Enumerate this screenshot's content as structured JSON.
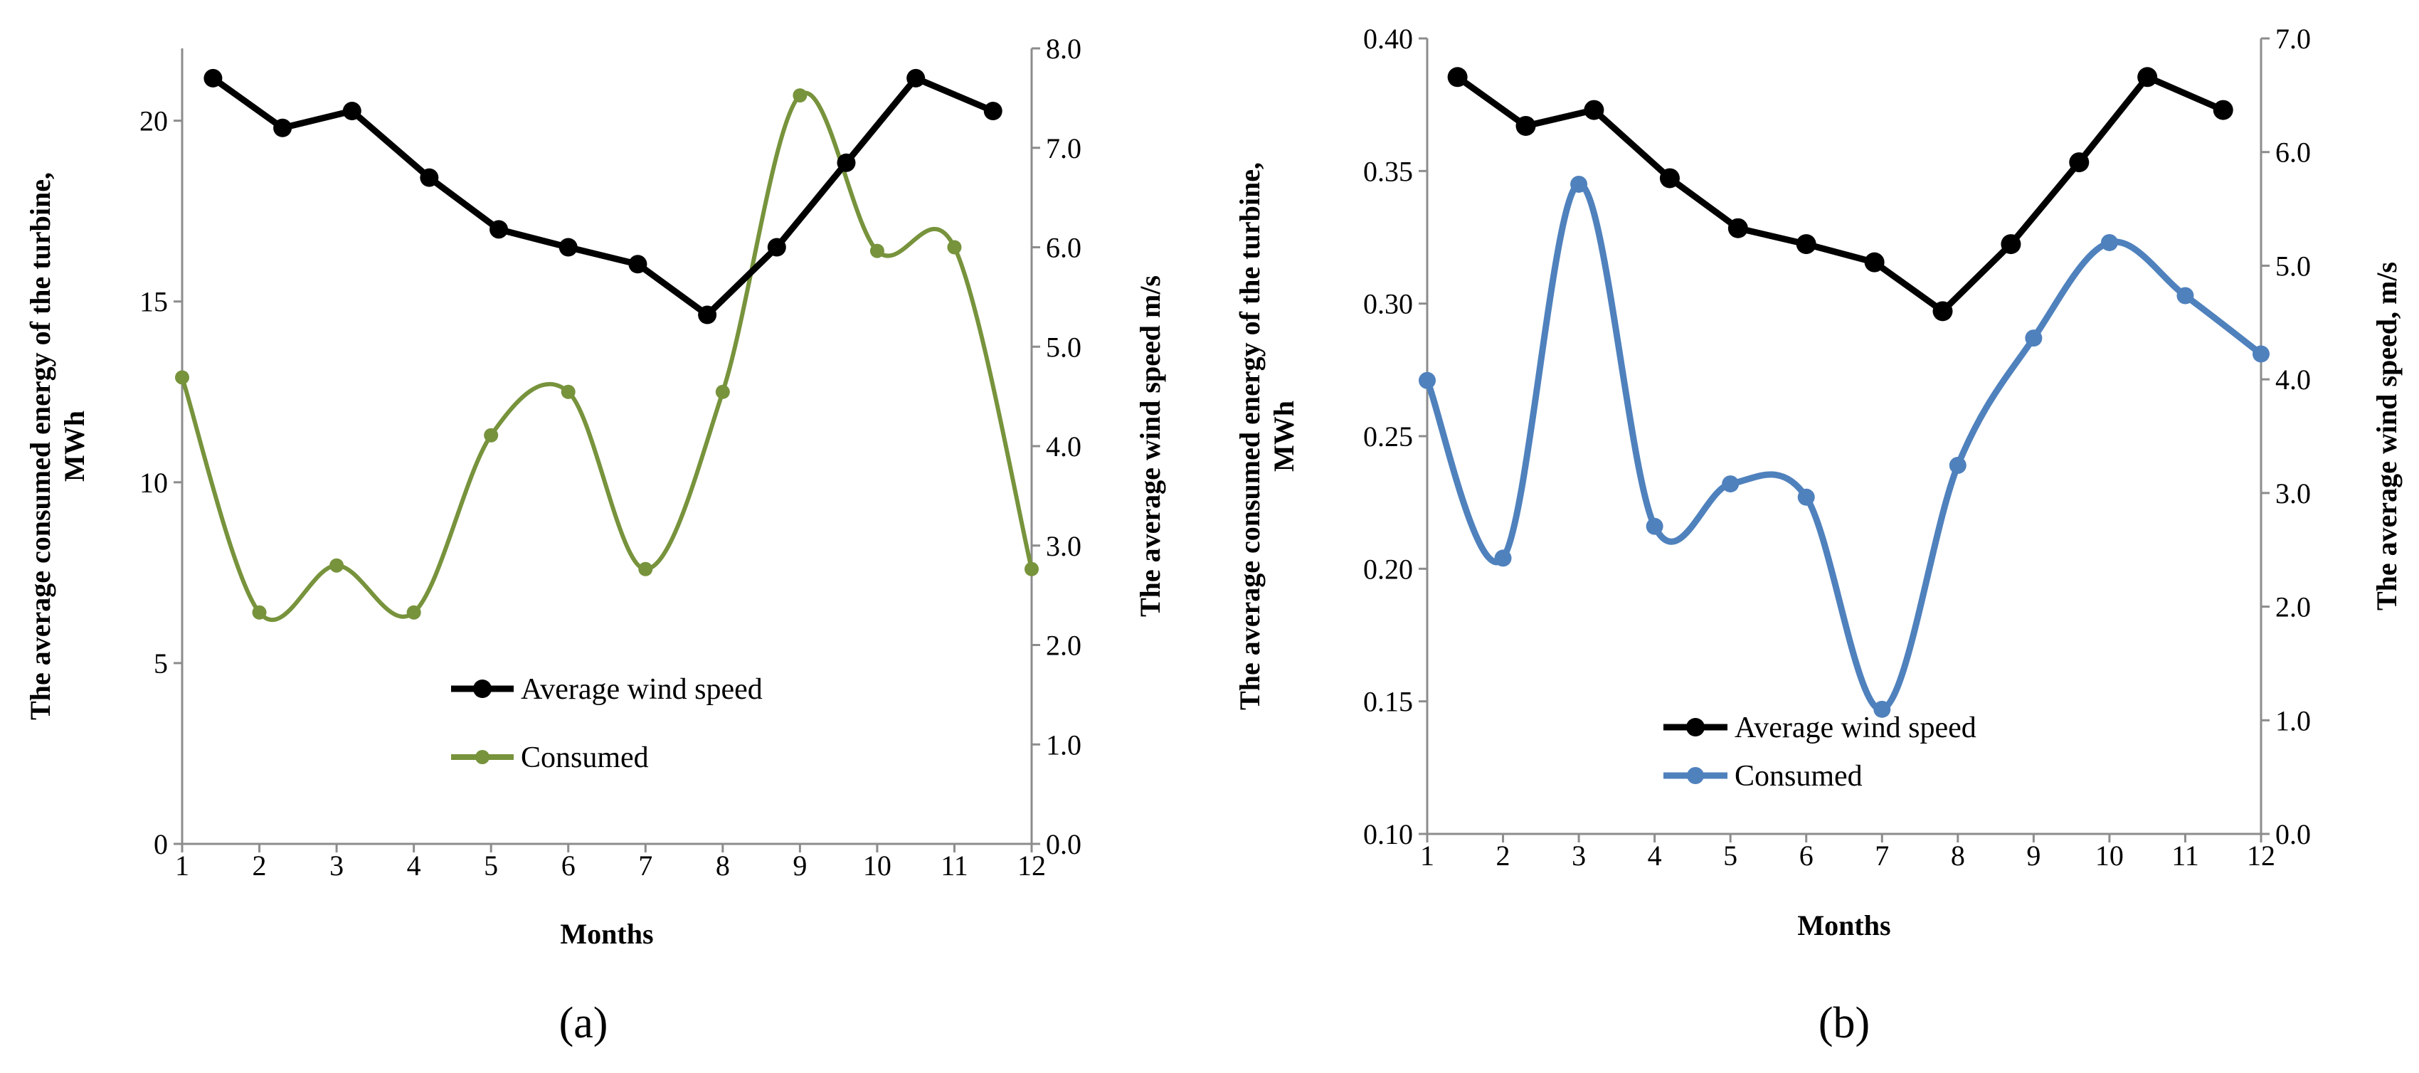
{
  "chart_data": [
    {
      "type": "line",
      "panel_label": "(a)",
      "x": [
        1,
        2,
        3,
        4,
        5,
        6,
        7,
        8,
        9,
        10,
        11,
        12
      ],
      "xlabel": "Months",
      "ylabel_left": "The average consumed energy of the turbine, MWh",
      "ylabel_right": "The average wind speed m/s",
      "ylim_left": [
        0,
        22
      ],
      "ylim_right": [
        0,
        8
      ],
      "yticks_left": [
        0,
        5,
        10,
        15,
        20
      ],
      "yticks_right": [
        0,
        1,
        2,
        3,
        4,
        5,
        6,
        7,
        8
      ],
      "legend_position": "center-bottom",
      "series": [
        {
          "name": "Average wind speed",
          "axis": "right",
          "color": "#000000",
          "smooth": false,
          "x": [
            1.4,
            2.3,
            3.2,
            4.2,
            5.1,
            6.0,
            6.9,
            7.8,
            8.7,
            9.6,
            10.5,
            11.5
          ],
          "values": [
            7.7,
            7.2,
            7.37,
            6.7,
            6.18,
            6.0,
            5.83,
            5.32,
            6.0,
            6.85,
            7.7,
            7.37
          ]
        },
        {
          "name": "Consumed",
          "axis": "left",
          "color": "#77933c",
          "smooth": true,
          "x": [
            1,
            2,
            3,
            4,
            5,
            6,
            7,
            8,
            9,
            10,
            11,
            12
          ],
          "values": [
            12.9,
            6.4,
            7.7,
            6.4,
            11.3,
            12.5,
            7.6,
            12.5,
            20.7,
            16.4,
            16.5,
            7.6
          ]
        }
      ]
    },
    {
      "type": "line",
      "panel_label": "(b)",
      "x": [
        1,
        2,
        3,
        4,
        5,
        6,
        7,
        8,
        9,
        10,
        11,
        12
      ],
      "xlabel": "Months",
      "ylabel_left": "The average consumed energy of the turbine, MWh",
      "ylabel_right": "The average wind speed, m/s",
      "ylim_left": [
        0.1,
        0.4
      ],
      "ylim_right": [
        0,
        7
      ],
      "yticks_left": [
        "0.10",
        "0.15",
        "0.20",
        "0.25",
        "0.30",
        "0.35",
        "0.40"
      ],
      "yticks_right": [
        "0.0",
        "1.0",
        "2.0",
        "3.0",
        "4.0",
        "5.0",
        "6.0",
        "7.0"
      ],
      "legend_position": "center-bottom",
      "series": [
        {
          "name": "Average wind speed",
          "axis": "right",
          "color": "#000000",
          "smooth": false,
          "x": [
            1.4,
            2.3,
            3.2,
            4.2,
            5.1,
            6.0,
            6.9,
            7.8,
            8.7,
            9.6,
            10.5,
            11.5
          ],
          "values": [
            6.66,
            6.23,
            6.37,
            5.77,
            5.33,
            5.19,
            5.03,
            4.6,
            5.19,
            5.91,
            6.66,
            6.37
          ]
        },
        {
          "name": "Consumed",
          "axis": "left",
          "color": "#4f81bd",
          "smooth": true,
          "x": [
            1,
            2,
            3,
            4,
            5,
            6,
            7,
            8,
            9,
            10,
            11,
            12
          ],
          "values": [
            0.271,
            0.204,
            0.345,
            0.216,
            0.232,
            0.227,
            0.147,
            0.239,
            0.287,
            0.323,
            0.303,
            0.281
          ]
        }
      ]
    }
  ]
}
